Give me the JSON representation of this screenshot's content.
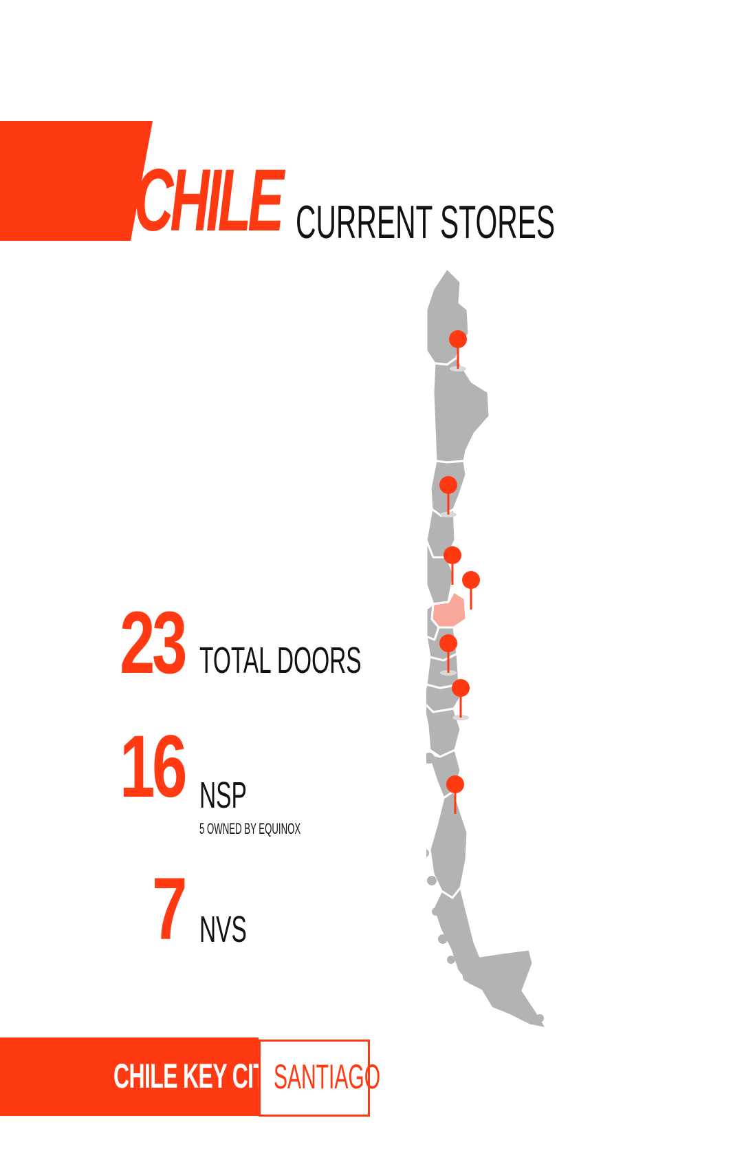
{
  "header": {
    "country": "CHILE",
    "subtitle": "CURRENT STORES"
  },
  "stats": [
    {
      "number": "23",
      "label": "TOTAL DOORS"
    },
    {
      "number": "16",
      "label": "NSP",
      "note": "5 OWNED BY EQUINOX"
    },
    {
      "number": "7",
      "label": "NVS"
    }
  ],
  "footer": {
    "key_label": "CHILE KEY CITY",
    "city": "SANTIAGO"
  },
  "map": {
    "highlighted_region": "Santiago Metropolitan Region",
    "store_pin_count": 7
  },
  "colors": {
    "accent": "#ff3a12",
    "map_fill": "#b3b3b3",
    "highlight_fill": "#f7a89a",
    "text": "#111111"
  }
}
